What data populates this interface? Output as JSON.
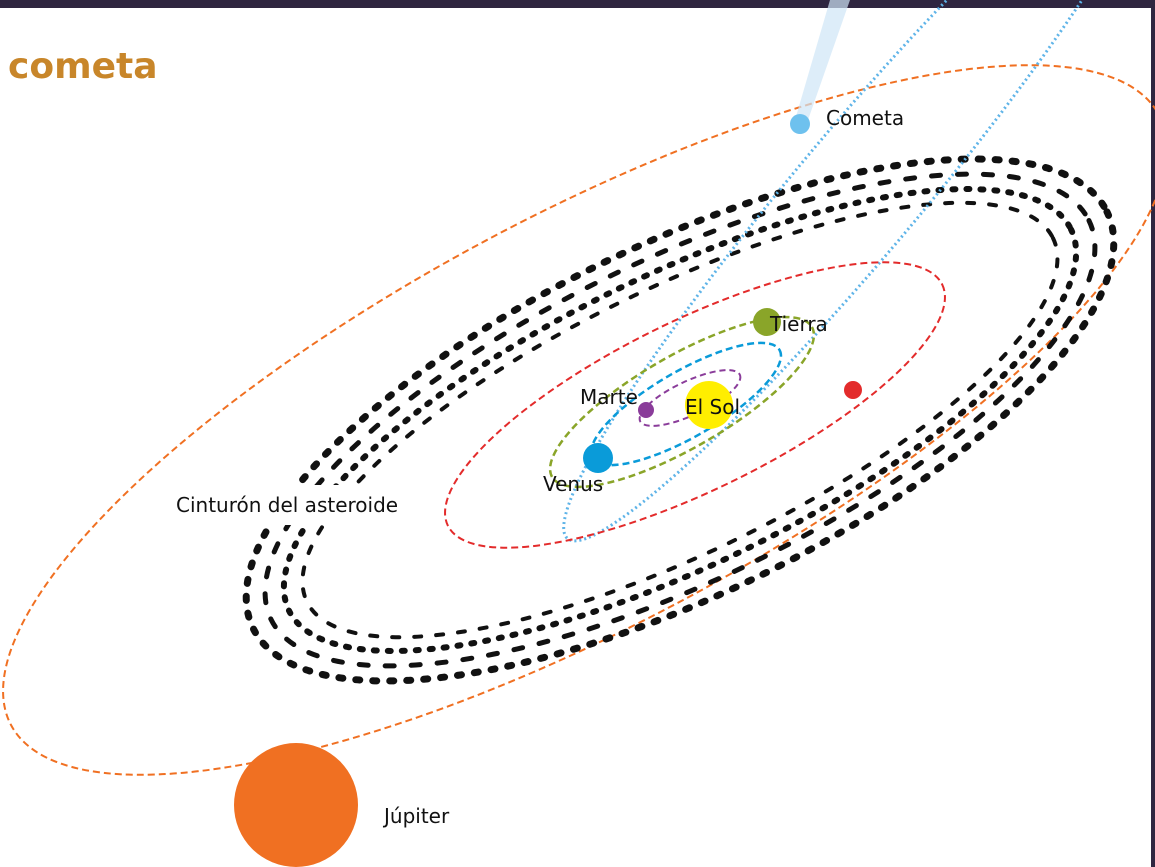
{
  "header": {
    "title": "cometa"
  },
  "labels": {
    "comet": "Cometa",
    "earth": "Tierra",
    "mars": "Marte",
    "sun": "El Sol",
    "venus": "Venus",
    "belt": "Cinturón del asteroide",
    "jupiter": "Júpiter"
  }
}
